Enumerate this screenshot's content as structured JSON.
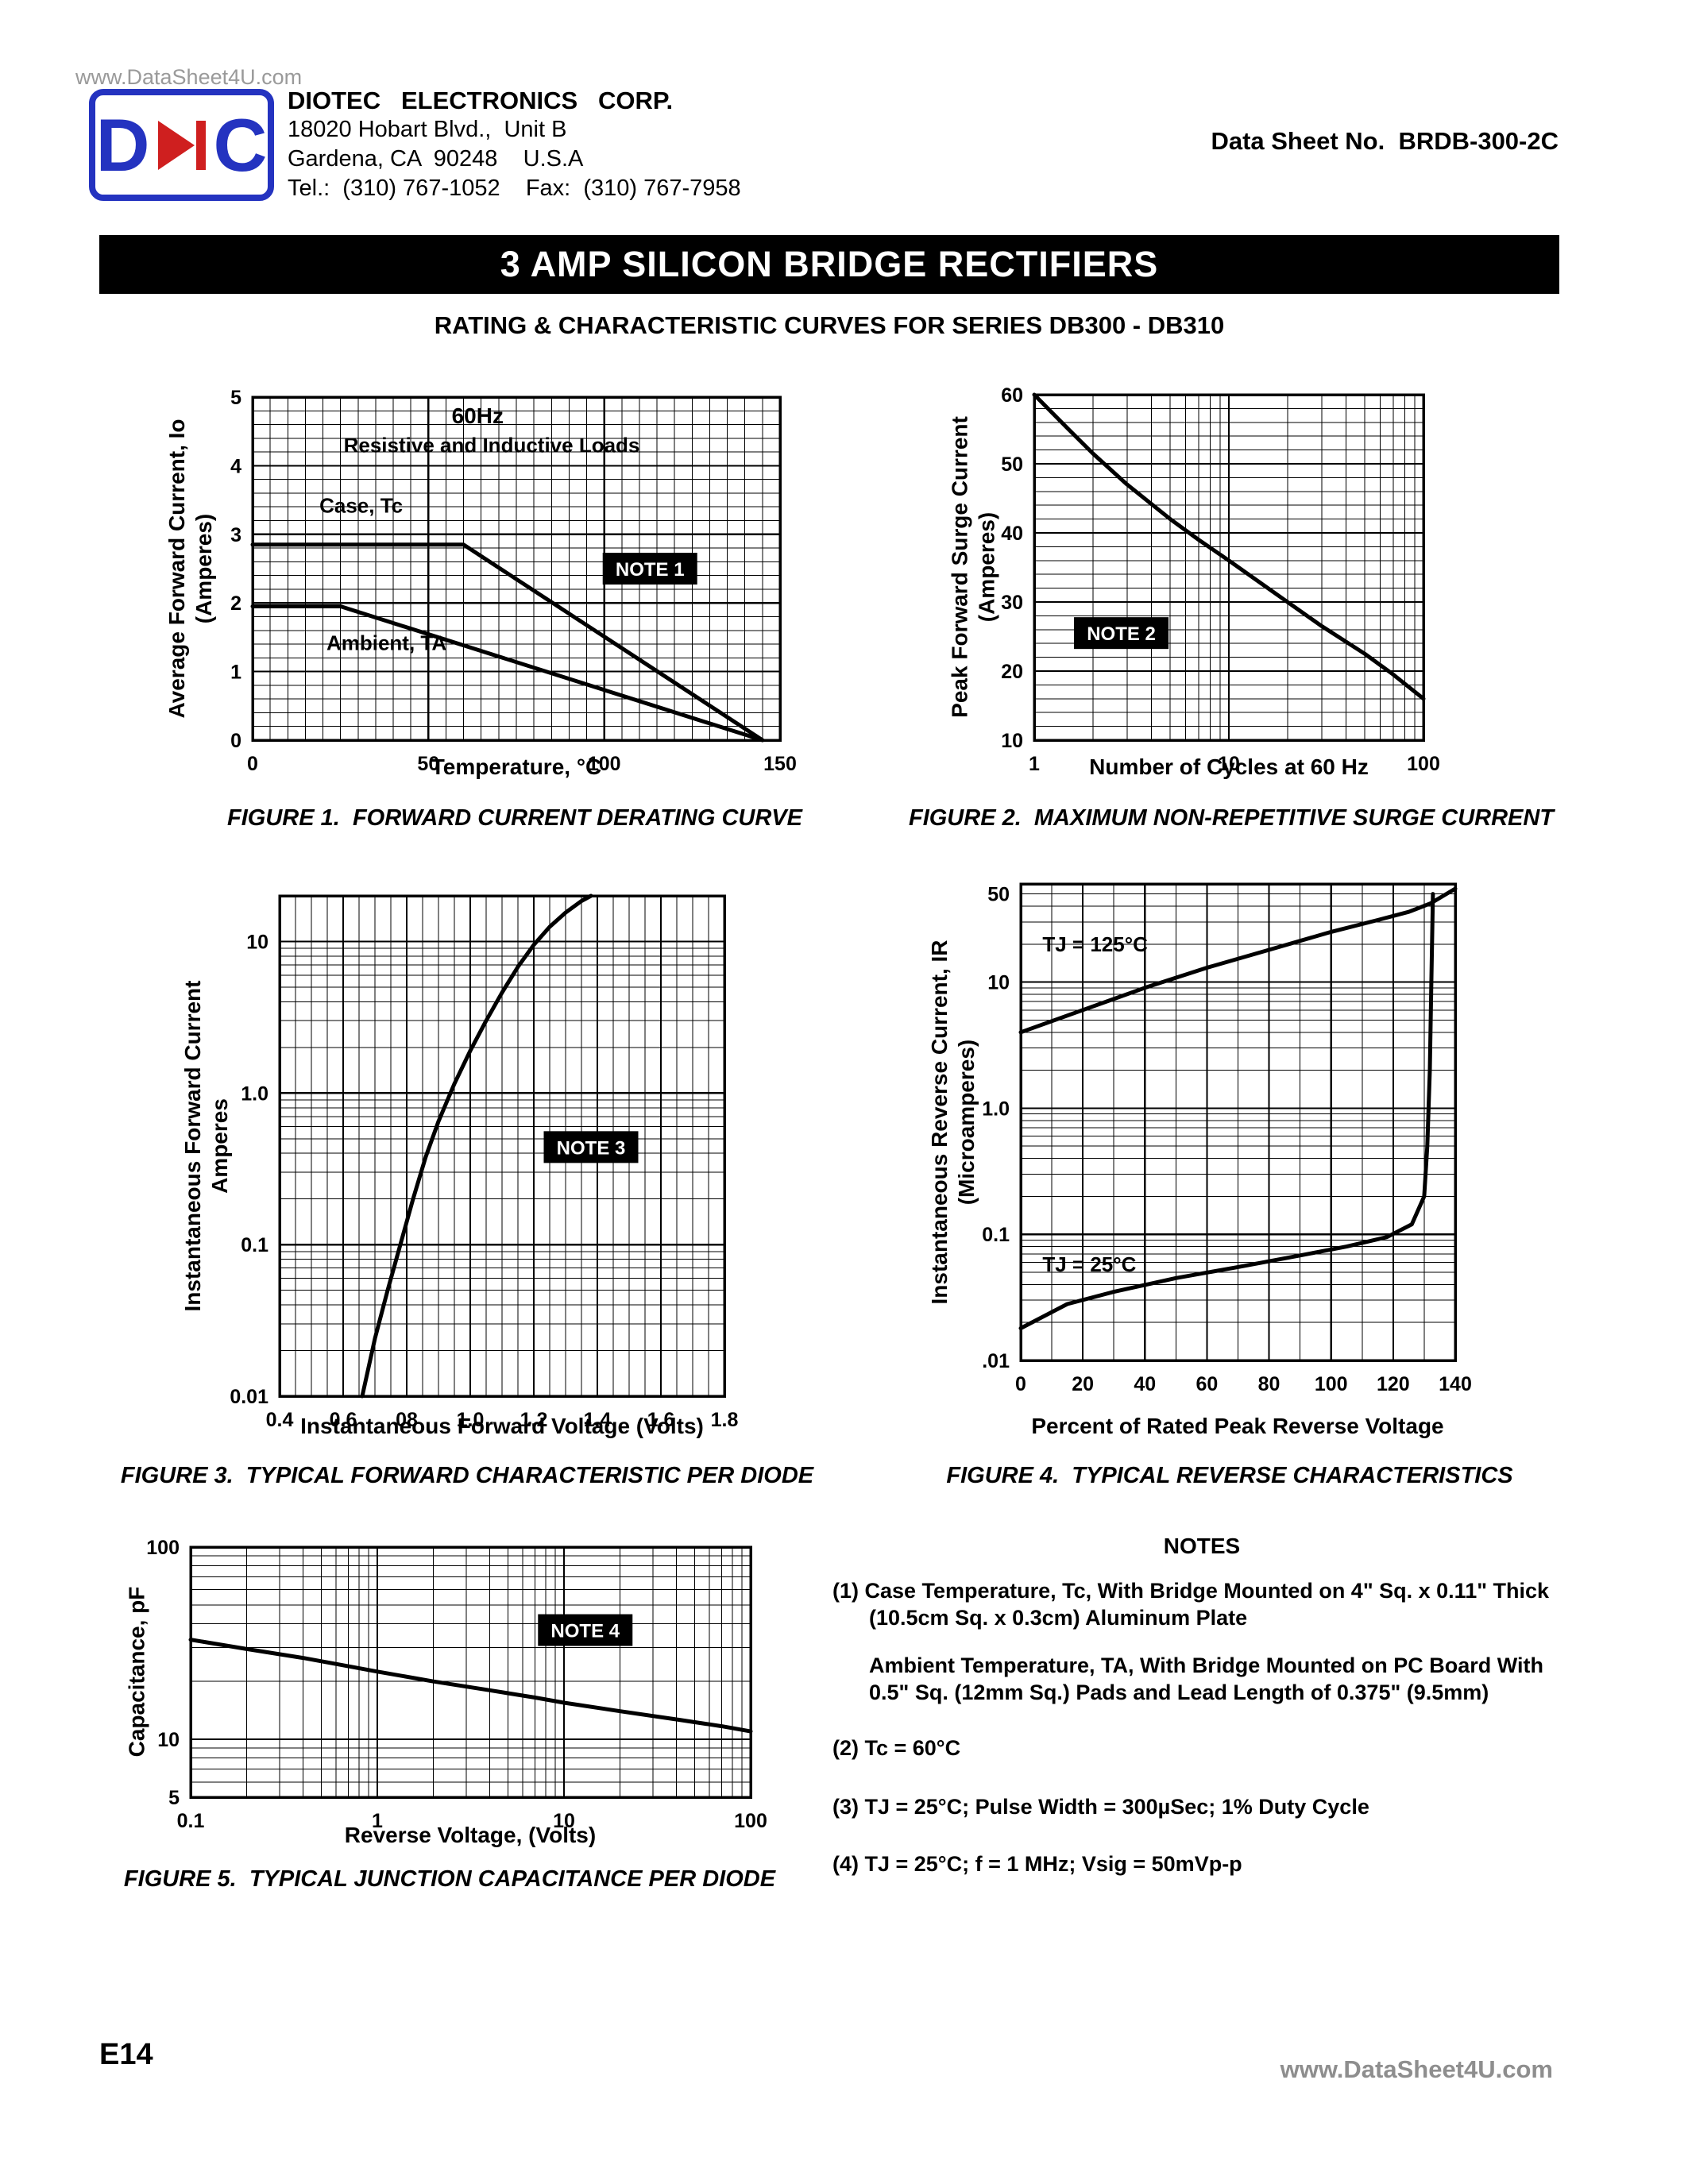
{
  "header": {
    "watermark": "www.DataSheet4U.com",
    "logo": {
      "left": "D",
      "right": "C"
    },
    "company": {
      "name": "DIOTEC   ELECTRONICS   CORP.",
      "address1": "18020 Hobart Blvd.,  Unit B",
      "address2": "Gardena, CA  90248    U.S.A",
      "phone": "Tel.:  (310) 767-1052    Fax:  (310) 767-7958"
    },
    "datasheet_no": "Data Sheet No.  BRDB-300-2C",
    "banner": "3 AMP SILICON BRIDGE RECTIFIERS",
    "subtitle": "RATING & CHARACTERISTIC CURVES FOR SERIES DB300 - DB310"
  },
  "notes": {
    "heading": "NOTES",
    "n1a": "(1) Case Temperature, Tc, With Bridge Mounted on  4\" Sq. x 0.11\" Thick",
    "n1b": "(10.5cm Sq. x 0.3cm) Aluminum Plate",
    "n1c": "Ambient Temperature, TA,  With Bridge Mounted on PC Board With",
    "n1d": "0.5\" Sq. (12mm Sq.) Pads and Lead Length of 0.375\" (9.5mm)",
    "n2": "(2) Tc = 60°C",
    "n3": "(3) TJ = 25°C; Pulse Width = 300µSec; 1% Duty Cycle",
    "n4": "(4) TJ = 25°C; f = 1 MHz; Vsig = 50mVp-p"
  },
  "footer": {
    "page_label": "E14",
    "watermark": "www.DataSheet4U.com"
  },
  "chart_data": [
    {
      "id": "fig1",
      "type": "line",
      "caption": "FIGURE 1.  FORWARD CURRENT DERATING CURVE",
      "xlabel": "Temperature, °C",
      "ylabel_lines": [
        "Average Forward Current, Io",
        "(Amperes)"
      ],
      "x": {
        "scale": "linear",
        "min": 0,
        "max": 150,
        "minor": 5,
        "ticks": [
          0,
          50,
          100,
          150
        ],
        "tick_labels": [
          "0",
          "50",
          "100",
          "150"
        ]
      },
      "y": {
        "scale": "linear",
        "min": 0,
        "max": 5,
        "minor": 0.2,
        "ticks": [
          0,
          1,
          2,
          3,
          4,
          5
        ],
        "tick_labels": [
          "0",
          "1",
          "2",
          "3",
          "4",
          "5"
        ]
      },
      "series": [
        {
          "name": "Case, Tc",
          "points": [
            [
              0,
              2.85
            ],
            [
              60,
              2.85
            ],
            [
              145,
              0
            ]
          ]
        },
        {
          "name": "Ambient, TA",
          "points": [
            [
              0,
              1.95
            ],
            [
              25,
              1.95
            ],
            [
              145,
              0
            ]
          ]
        }
      ],
      "annotations": [
        {
          "text": "60Hz",
          "x": 64,
          "y": 4.72,
          "style": "bold",
          "anchor": "middle",
          "size": 28
        },
        {
          "text": "Resistive and Inductive Loads",
          "x": 68,
          "y": 4.3,
          "style": "bold",
          "anchor": "middle",
          "size": 26
        },
        {
          "text": "Case, Tc",
          "x": 19,
          "y": 3.42,
          "style": "bold",
          "anchor": "start",
          "size": 26
        },
        {
          "text": "NOTE 1",
          "x": 113,
          "y": 2.5,
          "style": "notebox",
          "anchor": "middle",
          "size": 24
        },
        {
          "text": "Ambient, TA",
          "x": 21,
          "y": 1.42,
          "style": "bold",
          "anchor": "start",
          "size": 26
        }
      ]
    },
    {
      "id": "fig2",
      "type": "line",
      "caption": "FIGURE 2.  MAXIMUM NON-REPETITIVE SURGE CURRENT",
      "xlabel": "Number of Cycles at 60 Hz",
      "ylabel_lines": [
        "Peak Forward Surge Current",
        "(Amperes)"
      ],
      "x": {
        "scale": "log",
        "min": 1,
        "max": 100,
        "ticks": [
          1,
          10,
          100
        ],
        "tick_labels": [
          "1",
          "10",
          "100"
        ]
      },
      "y": {
        "scale": "linear",
        "min": 10,
        "max": 60,
        "minor": 2,
        "ticks": [
          10,
          20,
          30,
          40,
          50,
          60
        ],
        "tick_labels": [
          "10",
          "20",
          "30",
          "40",
          "50",
          "60"
        ]
      },
      "series": [
        {
          "name": "surge",
          "points": [
            [
              1,
              60
            ],
            [
              1.5,
              55
            ],
            [
              2,
              51.5
            ],
            [
              3,
              47
            ],
            [
              5,
              42
            ],
            [
              7,
              39
            ],
            [
              10,
              36
            ],
            [
              15,
              32.5
            ],
            [
              20,
              30
            ],
            [
              30,
              26.5
            ],
            [
              50,
              22.5
            ],
            [
              70,
              19.5
            ],
            [
              100,
              16
            ]
          ]
        }
      ],
      "annotations": [
        {
          "text": "NOTE 2",
          "x": 2.8,
          "y": 25.5,
          "style": "notebox",
          "anchor": "middle",
          "size": 24
        }
      ]
    },
    {
      "id": "fig3",
      "type": "line",
      "caption": "FIGURE 3.  TYPICAL FORWARD CHARACTERISTIC PER DIODE",
      "xlabel": "Instantaneous Forward Voltage (Volts)",
      "ylabel_lines": [
        "Instantaneous Forward Current",
        "Amperes"
      ],
      "x": {
        "scale": "linear",
        "min": 0.4,
        "max": 1.8,
        "minor": 0.05,
        "ticks": [
          0.4,
          0.6,
          0.8,
          1.0,
          1.2,
          1.4,
          1.6,
          1.8
        ],
        "tick_labels": [
          "0.4",
          "0.6",
          "08",
          "1.0",
          "1.2",
          "1.4",
          "1.6",
          "1.8"
        ]
      },
      "y": {
        "scale": "log",
        "min": 0.01,
        "max": 20,
        "ticks": [
          10,
          1,
          0.1,
          0.01
        ],
        "tick_labels": [
          "10",
          "1.0",
          "0.1",
          "0.01"
        ]
      },
      "series": [
        {
          "name": "forward",
          "points": [
            [
              0.66,
              0.01
            ],
            [
              0.7,
              0.024
            ],
            [
              0.74,
              0.05
            ],
            [
              0.78,
              0.1
            ],
            [
              0.82,
              0.2
            ],
            [
              0.86,
              0.38
            ],
            [
              0.9,
              0.65
            ],
            [
              0.95,
              1.15
            ],
            [
              1.0,
              1.9
            ],
            [
              1.05,
              3.0
            ],
            [
              1.1,
              4.6
            ],
            [
              1.15,
              6.8
            ],
            [
              1.2,
              9.5
            ],
            [
              1.25,
              12.5
            ],
            [
              1.3,
              15.5
            ],
            [
              1.35,
              18.5
            ],
            [
              1.38,
              20
            ]
          ]
        }
      ],
      "annotations": [
        {
          "text": "NOTE 3",
          "x": 1.38,
          "y": 0.44,
          "style": "notebox",
          "anchor": "middle",
          "size": 24
        }
      ]
    },
    {
      "id": "fig4",
      "type": "line",
      "caption": "FIGURE 4.  TYPICAL REVERSE CHARACTERISTICS",
      "xlabel": "Percent of Rated Peak Reverse Voltage",
      "ylabel_lines": [
        "Instantaneous Reverse Current, IR",
        "(Microamperes)"
      ],
      "x": {
        "scale": "linear",
        "min": 0,
        "max": 140,
        "minor": 10,
        "ticks": [
          0,
          20,
          40,
          60,
          80,
          100,
          120,
          140
        ],
        "tick_labels": [
          "0",
          "20",
          "40",
          "60",
          "80",
          "100",
          "120",
          "140"
        ]
      },
      "y": {
        "scale": "log",
        "min": 0.01,
        "max": 60,
        "ticks": [
          50,
          10,
          1,
          0.1,
          0.01
        ],
        "tick_labels": [
          "50",
          "10",
          "1.0",
          "0.1",
          ".01"
        ]
      },
      "series": [
        {
          "name": "TJ = 125°C",
          "points": [
            [
              0,
              4
            ],
            [
              20,
              6
            ],
            [
              40,
              9
            ],
            [
              60,
              13
            ],
            [
              80,
              18
            ],
            [
              100,
              25
            ],
            [
              115,
              31
            ],
            [
              125,
              36
            ],
            [
              132,
              42
            ],
            [
              140,
              55
            ]
          ]
        },
        {
          "name": "TJ = 25°C",
          "points": [
            [
              0,
              0.018
            ],
            [
              15,
              0.028
            ],
            [
              30,
              0.035
            ],
            [
              50,
              0.045
            ],
            [
              70,
              0.055
            ],
            [
              90,
              0.068
            ],
            [
              105,
              0.08
            ],
            [
              118,
              0.095
            ],
            [
              126,
              0.12
            ],
            [
              130,
              0.2
            ],
            [
              131,
              0.5
            ],
            [
              131.8,
              2
            ],
            [
              132.3,
              10
            ],
            [
              132.8,
              50
            ]
          ]
        }
      ],
      "annotations": [
        {
          "text": "TJ = 125°C",
          "x": 7,
          "y": 20,
          "style": "bold",
          "anchor": "start",
          "size": 26
        },
        {
          "text": "TJ = 25°C",
          "x": 7,
          "y": 0.058,
          "style": "bold",
          "anchor": "start",
          "size": 26
        }
      ]
    },
    {
      "id": "fig5",
      "type": "line",
      "caption": "FIGURE 5.  TYPICAL JUNCTION CAPACITANCE PER DIODE",
      "xlabel": "Reverse Voltage, (Volts)",
      "ylabel_lines": [
        "Capacitance, pF"
      ],
      "x": {
        "scale": "log",
        "min": 0.1,
        "max": 100,
        "ticks": [
          0.1,
          1,
          10,
          100
        ],
        "tick_labels": [
          "0.1",
          "1",
          "10",
          "100"
        ]
      },
      "y": {
        "scale": "log",
        "min": 5,
        "max": 100,
        "ticks": [
          100,
          10,
          5
        ],
        "tick_labels": [
          "100",
          "10",
          "5"
        ]
      },
      "series": [
        {
          "name": "capacitance",
          "points": [
            [
              0.1,
              33
            ],
            [
              0.2,
              29.5
            ],
            [
              0.4,
              26.5
            ],
            [
              0.7,
              24
            ],
            [
              1,
              22.5
            ],
            [
              2,
              20
            ],
            [
              4,
              18
            ],
            [
              7,
              16.5
            ],
            [
              10,
              15.5
            ],
            [
              20,
              14
            ],
            [
              40,
              12.7
            ],
            [
              70,
              11.7
            ],
            [
              100,
              11
            ]
          ]
        }
      ],
      "annotations": [
        {
          "text": "NOTE 4",
          "x": 13,
          "y": 37,
          "style": "notebox",
          "anchor": "middle",
          "size": 24
        }
      ]
    }
  ]
}
